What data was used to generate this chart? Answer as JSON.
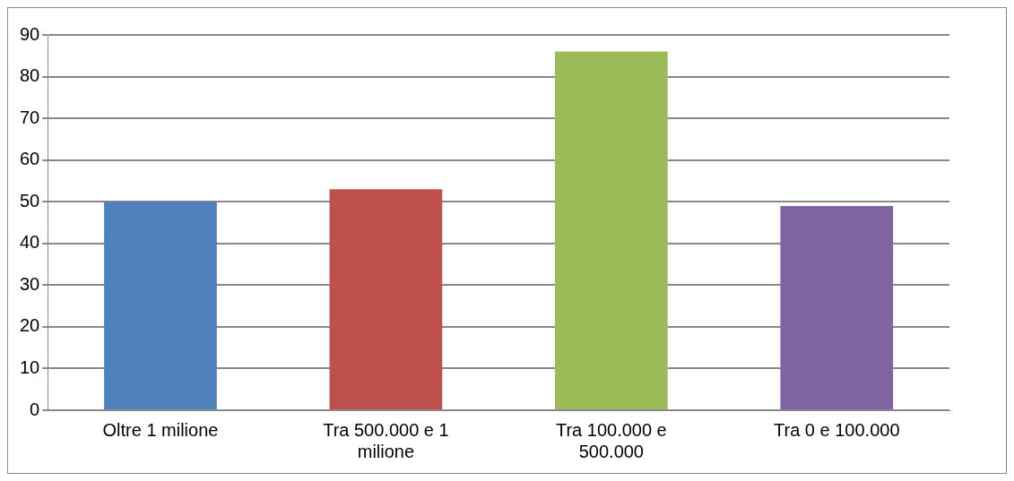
{
  "chart_data": {
    "type": "bar",
    "categories": [
      "Oltre 1 milione",
      "Tra 500.000 e 1 milione",
      "Tra 100.000 e 500.000",
      "Tra 0 e 100.000"
    ],
    "values": [
      50,
      53,
      86,
      49
    ],
    "colors": [
      "#4f81bd",
      "#c0504d",
      "#9bbb59",
      "#8064a2"
    ],
    "ylim": [
      0,
      90
    ],
    "yticks": [
      0,
      10,
      20,
      30,
      40,
      50,
      60,
      70,
      80,
      90
    ],
    "grid": "y",
    "legend": false
  }
}
